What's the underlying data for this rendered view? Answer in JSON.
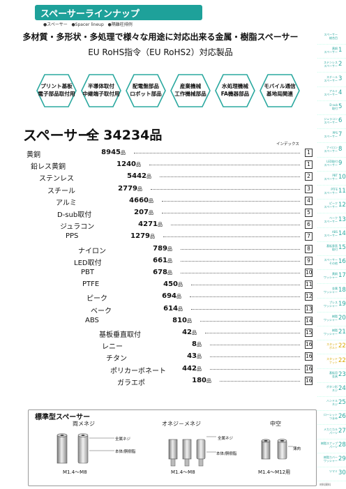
{
  "header": {
    "title": "スペーサーラインナップ",
    "subtitle_items": [
      "●スペーサー",
      "●Spacer lineup",
      "●隔離柱排例"
    ],
    "headline1": "多材質・多形状・多処理で様々な用途に対応出来る金属・樹脂スペーサー",
    "headline2": "EU RoHS指令（EU RoHS2）対応製品"
  },
  "categories": [
    {
      "line1": "プリント基板",
      "line2": "電子部品取付用"
    },
    {
      "line1": "半導体取付",
      "line2": "中継端子取付用"
    },
    {
      "line1": "配電盤部品",
      "line2": "ロボット部品"
    },
    {
      "line1": "産業機械",
      "line2": "工作機械部品"
    },
    {
      "line1": "水処理機械",
      "line2": "FA機器部品"
    },
    {
      "line1": "モバイル通信",
      "line2": "基地局関連"
    }
  ],
  "total": {
    "label": "スペーサー",
    "prefix": "全",
    "count": "34234",
    "unit": "品"
  },
  "index_header": "インデックス",
  "unit": "品",
  "rows": [
    {
      "name": "黄銅",
      "count": "8945",
      "index": "1"
    },
    {
      "name": "鉛レス黄銅",
      "count": "1240",
      "index": "1"
    },
    {
      "name": "ステンレス",
      "count": "5442",
      "index": "2"
    },
    {
      "name": "スチール",
      "count": "2779",
      "index": "3"
    },
    {
      "name": "アルミ",
      "count": "4660",
      "index": "4"
    },
    {
      "name": "D-sub取付",
      "count": "207",
      "index": "5"
    },
    {
      "name": "ジュラコン",
      "count": "4271",
      "index": "6"
    },
    {
      "name": "PPS",
      "count": "1279",
      "index": "7"
    },
    {
      "name": "ナイロン",
      "count": "789",
      "index": "8"
    },
    {
      "name": "LED取付",
      "count": "661",
      "index": "9"
    },
    {
      "name": "PBT",
      "count": "678",
      "index": "10"
    },
    {
      "name": "PTFE",
      "count": "450",
      "index": "11"
    },
    {
      "name": "ピーク",
      "count": "694",
      "index": "12"
    },
    {
      "name": "ベーク",
      "count": "614",
      "index": "13"
    },
    {
      "name": "ABS",
      "count": "810",
      "index": "14"
    },
    {
      "name": "基板垂直取付",
      "count": "42",
      "index": "15"
    },
    {
      "name": "レニー",
      "count": "8",
      "index": "16"
    },
    {
      "name": "チタン",
      "count": "43",
      "index": "16"
    },
    {
      "name": "ポリカーボネート",
      "count": "442",
      "index": "16"
    },
    {
      "name": "ガラエポ",
      "count": "180",
      "index": "16"
    }
  ],
  "standard": {
    "title": "標準型スペーサー",
    "types": [
      {
        "name": "両メネジ",
        "size": "M1.4～M8"
      },
      {
        "name": "オネジ－メネジ",
        "size": "M1.4～M8"
      },
      {
        "name": "中空",
        "size": "M1.4～M12用"
      }
    ],
    "labels": {
      "thread": "全属ネジ",
      "body": "本体/胴樹脂",
      "body2": "本体/胴樹脂",
      "thread2": "全属ネジ",
      "hollow": "薄肉"
    }
  },
  "side_index": [
    {
      "label": "スペーサー\n総合目",
      "num": ""
    },
    {
      "label": "黄銅\nスペーサー",
      "num": "1"
    },
    {
      "label": "ステンレス\nスペーサー",
      "num": "2"
    },
    {
      "label": "スチール\nスペーサー",
      "num": "3"
    },
    {
      "label": "アルミ\nスペーサー",
      "num": "4"
    },
    {
      "label": "D-sub\n取付",
      "num": "5"
    },
    {
      "label": "ジュラコン\nスペーサー",
      "num": "6"
    },
    {
      "label": "PPS\nスペーサー",
      "num": "7"
    },
    {
      "label": "ナイロン\nスペーサー",
      "num": "8"
    },
    {
      "label": "LED取付\nスペーサー",
      "num": "9"
    },
    {
      "label": "PBT\nスペーサー",
      "num": "10"
    },
    {
      "label": "PTFE\nスペーサー",
      "num": "11"
    },
    {
      "label": "ピーク\nスペーサー",
      "num": "12"
    },
    {
      "label": "ベーク\nスペーサー",
      "num": "13"
    },
    {
      "label": "ABS\nスペーサー",
      "num": "14"
    },
    {
      "label": "基板垂直\n取付",
      "num": "15"
    },
    {
      "label": "スペーサー\nその他",
      "num": "16"
    },
    {
      "label": "黄銅\nワッシャー",
      "num": "17"
    },
    {
      "label": "金属\nワッシャー",
      "num": "18"
    },
    {
      "label": "プレス\nワッシャー",
      "num": "19"
    },
    {
      "label": "樹脂\nワッシャー",
      "num": "20"
    },
    {
      "label": "樹脂\nワッシャー",
      "num": "21"
    },
    {
      "label": "スタッド\nボルト",
      "num": "22"
    },
    {
      "label": "スタッド\nナット",
      "num": "22"
    },
    {
      "label": "基板用\n金具",
      "num": "23"
    },
    {
      "label": "ボタン形\nネジ",
      "num": "24"
    },
    {
      "label": "ハンドル\nネジ",
      "num": "25"
    },
    {
      "label": "ローレット\nつまみ",
      "num": "26"
    },
    {
      "label": "メカニカル\nパーツ",
      "num": "27"
    },
    {
      "label": "樹脂スナップ\nパーツ",
      "num": "28"
    },
    {
      "label": "樹脂カバー\nワッシャー",
      "num": "29"
    },
    {
      "label": "ツマミ",
      "num": "30"
    }
  ],
  "side_footer": "材料資料"
}
